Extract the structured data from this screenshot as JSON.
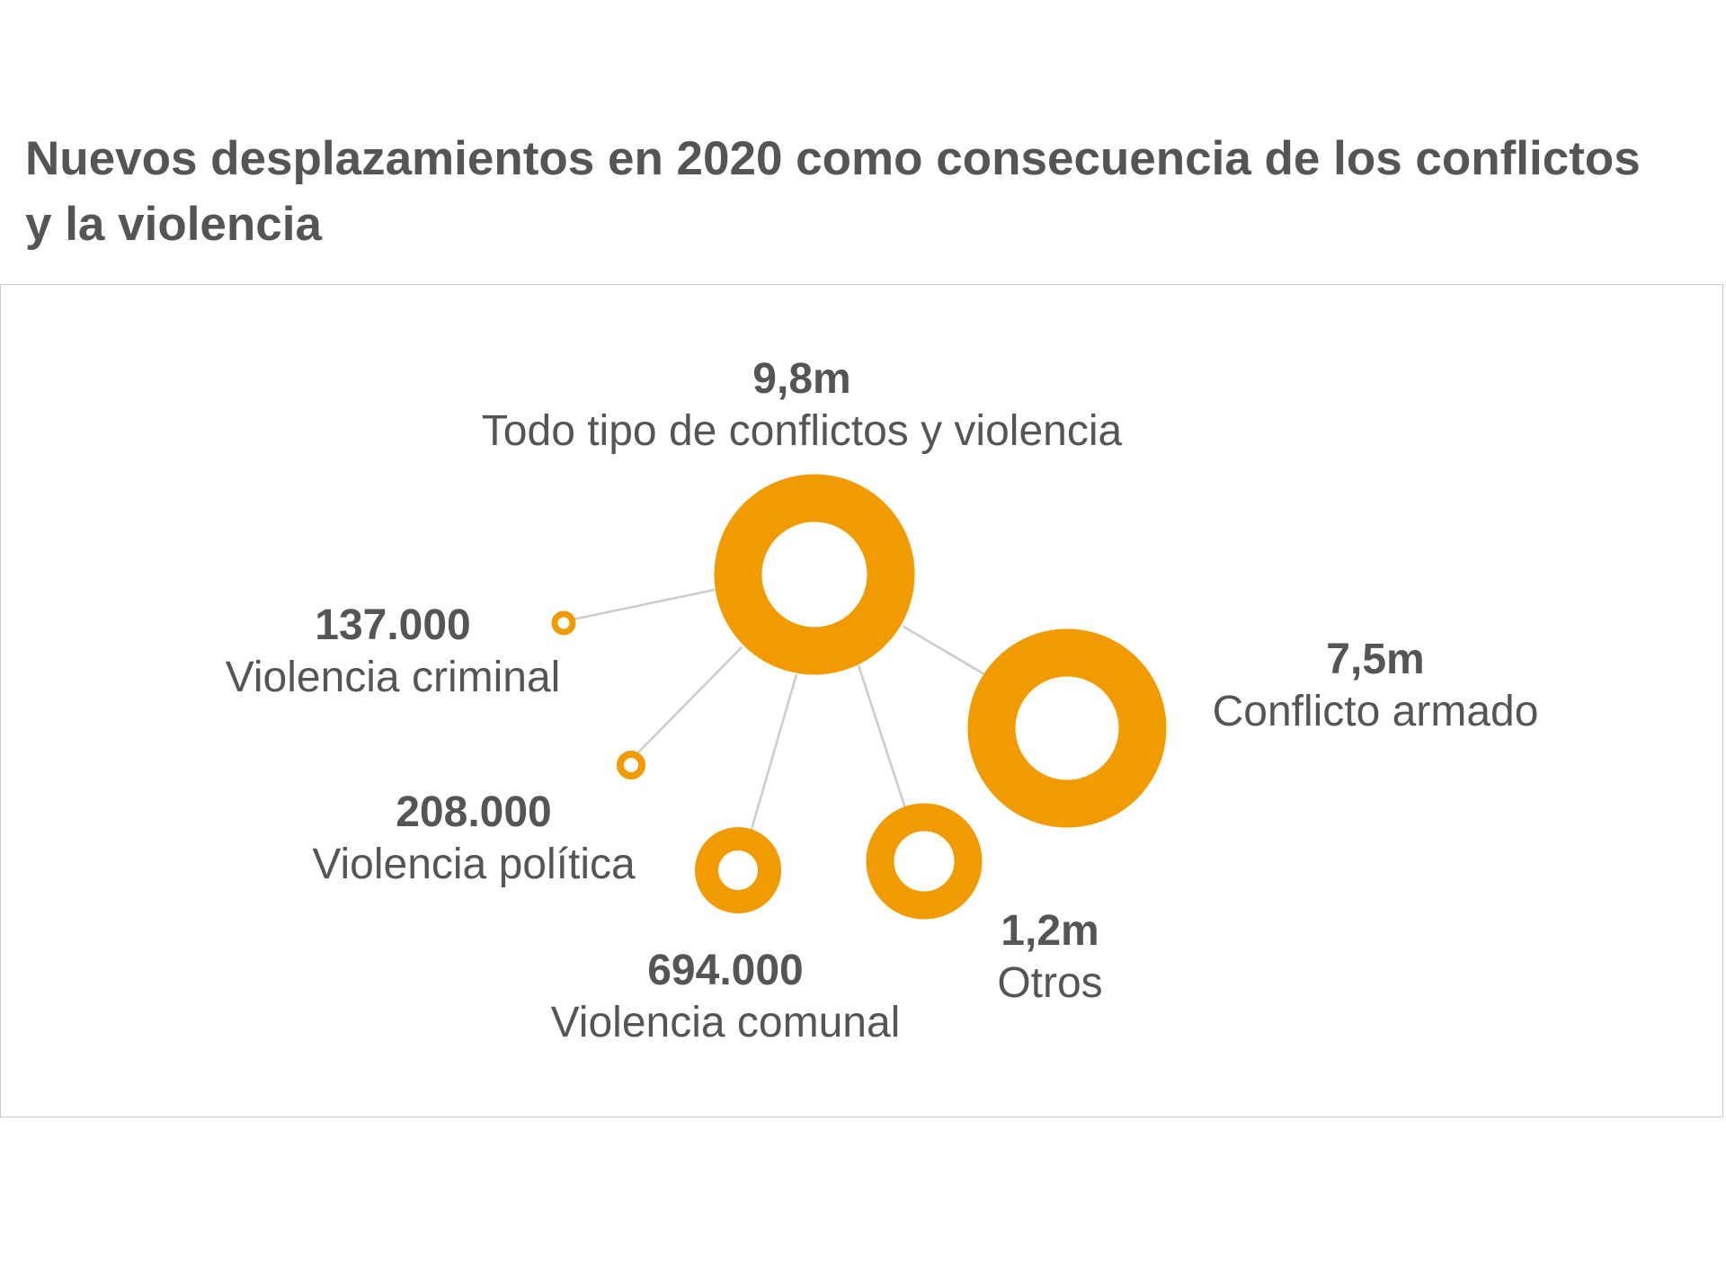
{
  "title": "Nuevos desplazamientos en 2020 como consecuencia de los conflictos y la violencia",
  "colors": {
    "ring": "#f29b00",
    "connector": "#cccccc",
    "text": "#555555",
    "frame": "#cccccc"
  },
  "nodes": [
    {
      "id": "total",
      "value": "9,8m",
      "label": "Todo tipo de conflictos y violencia"
    },
    {
      "id": "armado",
      "value": "7,5m",
      "label": "Conflicto armado"
    },
    {
      "id": "criminal",
      "value": "137.000",
      "label": "Violencia criminal"
    },
    {
      "id": "politica",
      "value": "208.000",
      "label": "Violencia política"
    },
    {
      "id": "comunal",
      "value": "694.000",
      "label": "Violencia comunal"
    },
    {
      "id": "otros",
      "value": "1,2m",
      "label": "Otros"
    }
  ],
  "chart_data": {
    "type": "bubble-network",
    "center": {
      "label": "Todo tipo de conflictos y violencia",
      "value": 9800000
    },
    "children": [
      {
        "label": "Conflicto armado",
        "value": 7500000
      },
      {
        "label": "Violencia criminal",
        "value": 137000
      },
      {
        "label": "Violencia política",
        "value": 208000
      },
      {
        "label": "Violencia comunal",
        "value": 694000
      },
      {
        "label": "Otros",
        "value": 1200000
      }
    ]
  }
}
